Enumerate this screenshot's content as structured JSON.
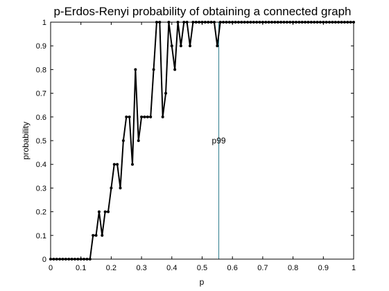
{
  "chart_data": {
    "type": "line",
    "title": "p-Erdos-Renyi probability of obtaining a connected graph",
    "xlabel": "p",
    "ylabel": "probability",
    "xlim": [
      0,
      1
    ],
    "ylim": [
      0,
      1
    ],
    "xticks": [
      "0",
      "0.1",
      "0.2",
      "0.3",
      "0.4",
      "0.5",
      "0.6",
      "0.7",
      "0.8",
      "0.9",
      "1"
    ],
    "yticks": [
      "0",
      "0.1",
      "0.2",
      "0.3",
      "0.4",
      "0.5",
      "0.6",
      "0.7",
      "0.8",
      "0.9",
      "1"
    ],
    "grid": false,
    "colors": {
      "series": "#000000",
      "annotation_line": "#2e7d8c",
      "axes": "#000000",
      "background": "#ffffff"
    },
    "series": [
      {
        "marker": "dot",
        "x": [
          0,
          0.01,
          0.02,
          0.03,
          0.04,
          0.05,
          0.06,
          0.07,
          0.08,
          0.09,
          0.1,
          0.11,
          0.12,
          0.13,
          0.14,
          0.15,
          0.16,
          0.17,
          0.18,
          0.19,
          0.2,
          0.21,
          0.22,
          0.23,
          0.24,
          0.25,
          0.26,
          0.27,
          0.28,
          0.29,
          0.3,
          0.31,
          0.32,
          0.33,
          0.34,
          0.35,
          0.36,
          0.37,
          0.38,
          0.39,
          0.4,
          0.41,
          0.42,
          0.43,
          0.44,
          0.45,
          0.46,
          0.47,
          0.48,
          0.49,
          0.5,
          0.51,
          0.52,
          0.53,
          0.54,
          0.55,
          0.56,
          0.57,
          0.58,
          0.59,
          0.6,
          0.61,
          0.62,
          0.63,
          0.64,
          0.65,
          0.66,
          0.67,
          0.68,
          0.69,
          0.7,
          0.71,
          0.72,
          0.73,
          0.74,
          0.75,
          0.76,
          0.77,
          0.78,
          0.79,
          0.8,
          0.81,
          0.82,
          0.83,
          0.84,
          0.85,
          0.86,
          0.87,
          0.88,
          0.89,
          0.9,
          0.91,
          0.92,
          0.93,
          0.94,
          0.95,
          0.96,
          0.97,
          0.98,
          0.99,
          1.0
        ],
        "y": [
          0,
          0,
          0,
          0,
          0,
          0,
          0,
          0,
          0,
          0,
          0,
          0,
          0,
          0,
          0.1,
          0.1,
          0.2,
          0.1,
          0.2,
          0.2,
          0.3,
          0.4,
          0.4,
          0.3,
          0.5,
          0.6,
          0.6,
          0.4,
          0.8,
          0.5,
          0.6,
          0.6,
          0.6,
          0.6,
          0.8,
          1.0,
          1.0,
          0.6,
          0.7,
          1.0,
          0.9,
          0.8,
          1.0,
          0.9,
          1.0,
          1.0,
          0.9,
          1.0,
          1.0,
          1.0,
          1.0,
          1.0,
          1.0,
          1.0,
          1.0,
          0.9,
          1.0,
          1.0,
          1.0,
          1.0,
          1.0,
          1.0,
          1.0,
          1.0,
          1.0,
          1.0,
          1.0,
          1.0,
          1.0,
          1.0,
          1.0,
          1.0,
          1.0,
          1.0,
          1.0,
          1.0,
          1.0,
          1.0,
          1.0,
          1.0,
          1.0,
          1.0,
          1.0,
          1.0,
          1.0,
          1.0,
          1.0,
          1.0,
          1.0,
          1.0,
          1.0,
          1.0,
          1.0,
          1.0,
          1.0,
          1.0,
          1.0,
          1.0,
          1.0,
          1.0,
          1.0
        ]
      }
    ],
    "annotations": [
      {
        "type": "vline",
        "x": 0.555,
        "label": "p99"
      }
    ]
  }
}
